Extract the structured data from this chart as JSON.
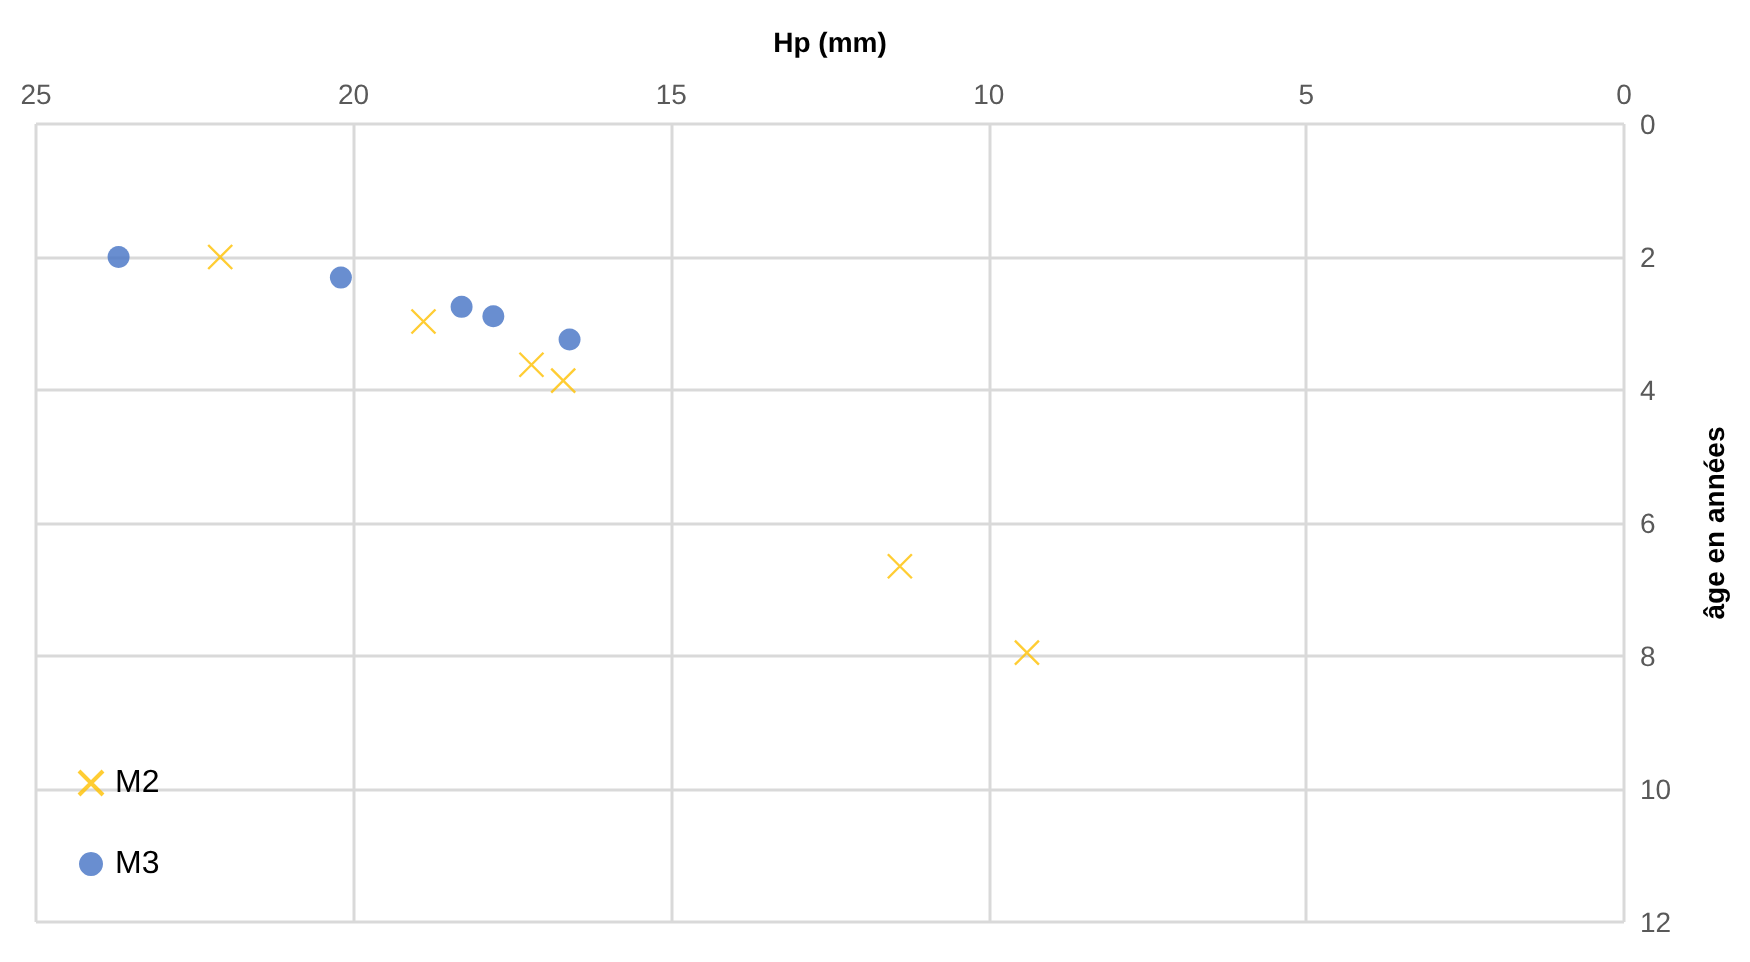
{
  "chart_data": {
    "type": "scatter",
    "xlabel": "Hp (mm)",
    "ylabel": "âge en années",
    "xlim": [
      25,
      0
    ],
    "xticks": [
      25,
      20,
      15,
      10,
      5,
      0
    ],
    "ylim": [
      12,
      0
    ],
    "yticks": [
      0,
      2,
      4,
      6,
      8,
      10,
      12
    ],
    "grid": true,
    "legend": "bottom left",
    "series": [
      {
        "name": "M2",
        "color": "#ffc000",
        "marker": "cross",
        "x": [
          22.1,
          18.9,
          17.2,
          16.7,
          11.4,
          9.4
        ],
        "values": [
          2.0,
          2.97,
          3.62,
          3.86,
          6.65,
          7.95
        ]
      },
      {
        "name": "M3",
        "color": "#4472c4",
        "marker": "circle",
        "x": [
          23.7,
          20.2,
          18.3,
          17.8,
          16.6
        ],
        "values": [
          2.0,
          2.31,
          2.75,
          2.89,
          3.24
        ]
      }
    ]
  }
}
